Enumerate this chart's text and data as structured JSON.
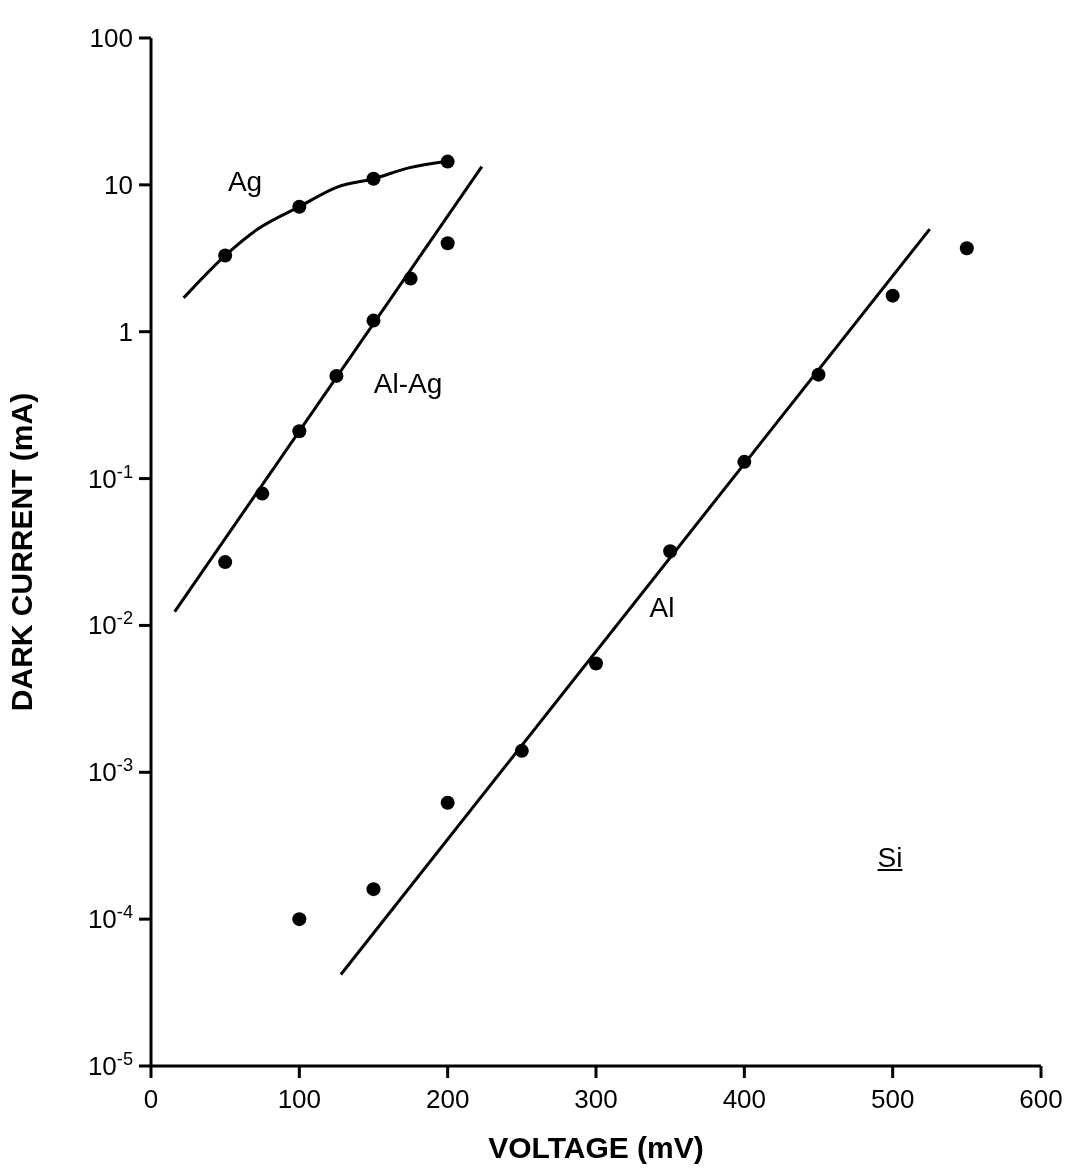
{
  "chart_data": {
    "type": "scatter",
    "xlabel": "VOLTAGE  (mV)",
    "ylabel": "DARK CURRENT  (mA)",
    "xlim": [
      0,
      600
    ],
    "xticks": [
      0,
      100,
      200,
      300,
      400,
      500,
      600
    ],
    "ylim": [
      1e-05,
      100
    ],
    "log": "y",
    "yticks": [
      {
        "value": 1e-05,
        "label": "10$^{-5}$"
      },
      {
        "value": 0.0001,
        "label": "10$^{-4}$"
      },
      {
        "value": 0.001,
        "label": "10$^{-3}$"
      },
      {
        "value": 0.01,
        "label": "10$^{-2}$"
      },
      {
        "value": 0.1,
        "label": "10$^{-1}$"
      },
      1,
      10,
      100
    ],
    "line_style": "solid",
    "series": [
      {
        "type": "line",
        "color": "#000000",
        "marker": "none",
        "x": [
          22,
          50,
          72,
          100,
          126,
          150,
          173,
          200
        ],
        "values": [
          1.7,
          3.3,
          5.0,
          7.1,
          9.7,
          11,
          13,
          14.5
        ]
      },
      {
        "color": "#000000",
        "marker": "circle",
        "x": [
          50,
          100,
          150,
          200
        ],
        "values": [
          3.3,
          7.1,
          11,
          14.4
        ]
      },
      {
        "type": "line",
        "color": "#000000",
        "marker": "none",
        "x": [
          16,
          223
        ],
        "values": [
          0.0124,
          13.3
        ]
      },
      {
        "color": "#000000",
        "marker": "circle",
        "x": [
          50,
          75,
          100,
          125,
          150,
          175,
          200
        ],
        "values": [
          0.027,
          0.079,
          0.21,
          0.5,
          1.19,
          2.3,
          4.0
        ]
      },
      {
        "type": "line",
        "color": "#000000",
        "marker": "none",
        "x": [
          128,
          525
        ],
        "values": [
          4.2e-05,
          5.0
        ]
      },
      {
        "color": "#000000",
        "marker": "circle",
        "x": [
          100,
          150,
          200,
          250,
          300,
          350,
          400,
          450,
          500,
          550
        ],
        "values": [
          0.0001,
          0.00016,
          0.00062,
          0.0014,
          0.0055,
          0.032,
          0.13,
          0.51,
          1.76,
          3.7
        ]
      }
    ],
    "annotations": [
      "Ag",
      "Al-Ag",
      "Al",
      "Si"
    ]
  }
}
